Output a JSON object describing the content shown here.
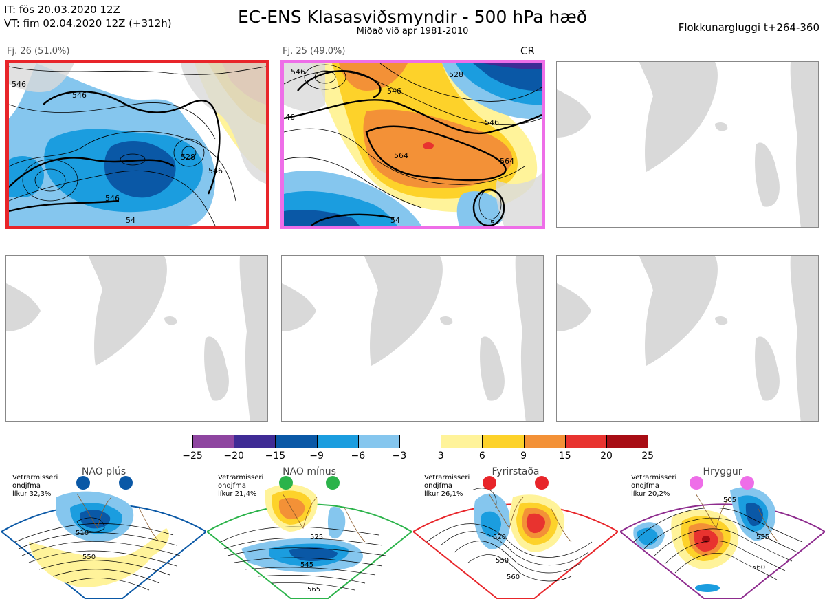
{
  "header": {
    "it_line": "IT: fös 20.03.2020 12Z",
    "vt_line": "VT: fim 02.04.2020 12Z  (+312h)",
    "title": "EC-ENS Klasasviðsmyndir - 500 hPa hæð",
    "subtitle": "Miðað við apr 1981-2010",
    "window": "Flokkunargluggi t+264-360"
  },
  "panels": [
    {
      "label": "Fj. 26 (51.0%)",
      "tag": "",
      "selected": "red",
      "contour_labels": [
        "546",
        "546",
        "528",
        "546",
        "546",
        "54"
      ]
    },
    {
      "label": "Fj. 25 (49.0%)",
      "tag": "CR",
      "selected": "pink",
      "contour_labels": [
        "546",
        "546",
        "528",
        "46",
        "546",
        "564",
        "564",
        "54",
        "5"
      ]
    },
    {
      "label": "",
      "tag": "",
      "selected": ""
    },
    {
      "label": "",
      "tag": "",
      "selected": ""
    },
    {
      "label": "",
      "tag": "",
      "selected": ""
    },
    {
      "label": "",
      "tag": "",
      "selected": ""
    }
  ],
  "colorbar": {
    "ticks": [
      "−25",
      "−20",
      "−15",
      "−9",
      "−6",
      "−3",
      "3",
      "6",
      "9",
      "15",
      "20",
      "25"
    ],
    "colors": [
      "#8e45a0",
      "#3f2b95",
      "#0a58a6",
      "#1b9ddf",
      "#85c6ee",
      "#ffffff",
      "#fff39a",
      "#fdd22a",
      "#f39137",
      "#e8332f",
      "#a80d14"
    ]
  },
  "regimes": [
    {
      "name": "NAO plús",
      "note_line1": "Vetrarmisseri",
      "note_line2": "ondjfma",
      "note_line3": "líkur 32,3%",
      "dot_color": "#0a58a6",
      "frame_color": "#0a58a6",
      "contour_labels": [
        "510",
        "550"
      ]
    },
    {
      "name": "NAO mínus",
      "note_line1": "Vetrarmisseri",
      "note_line2": "ondjfma",
      "note_line3": "líkur 21,4%",
      "dot_color": "#2bb34a",
      "frame_color": "#2bb34a",
      "contour_labels": [
        "525",
        "545",
        "565"
      ]
    },
    {
      "name": "Fyrirstaða",
      "note_line1": "Vetrarmisseri",
      "note_line2": "ondjfma",
      "note_line3": "líkur 26,1%",
      "dot_color": "#e8252a",
      "frame_color": "#e8252a",
      "contour_labels": [
        "520",
        "550",
        "560"
      ]
    },
    {
      "name": "Hryggur",
      "note_line1": "Vetrarmisseri",
      "note_line2": "ondjfma",
      "note_line3": "líkur 20,2%",
      "dot_color": "#ee6ee8",
      "frame_color": "#8e2c8e",
      "contour_labels": [
        "505",
        "535",
        "560"
      ]
    }
  ]
}
